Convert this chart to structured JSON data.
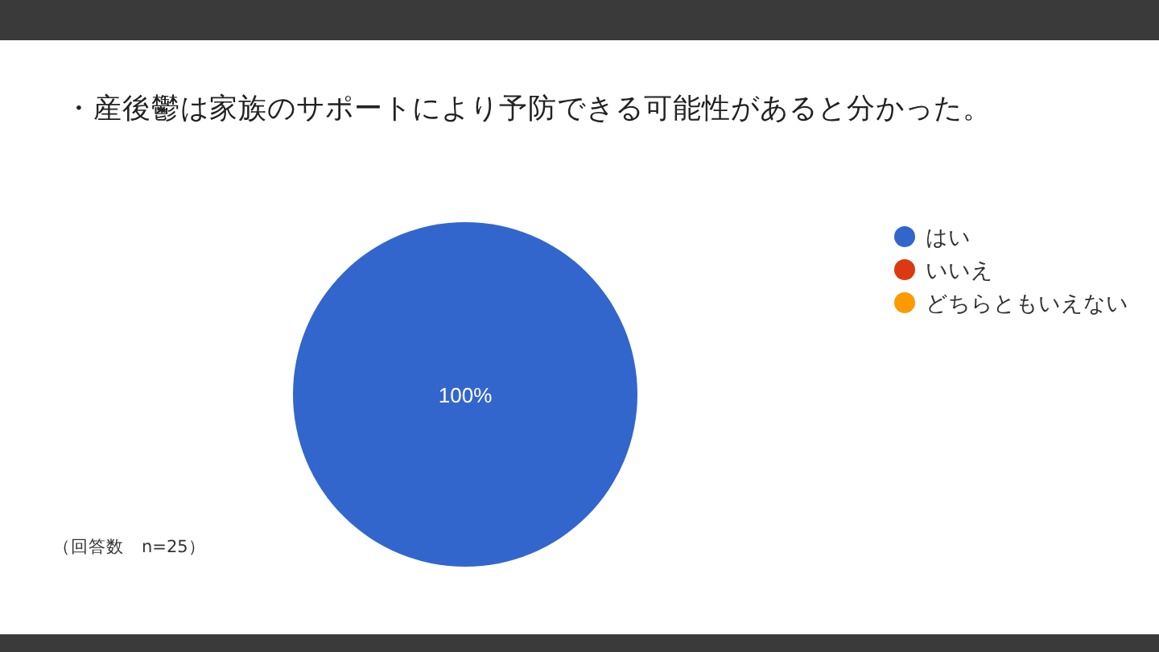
{
  "chart_data": {
    "type": "pie",
    "title": "・産後鬱は家族のサポートにより予防できる可能性があると分かった。",
    "categories": [
      "はい",
      "いいえ",
      "どちらともいえない"
    ],
    "values": [
      100,
      0,
      0
    ],
    "colors": [
      "#3366cc",
      "#dc3912",
      "#ff9900"
    ],
    "value_labels": [
      "100%",
      null,
      null
    ],
    "legend": "right",
    "annotations": [
      "（回答数　n=25）"
    ]
  }
}
